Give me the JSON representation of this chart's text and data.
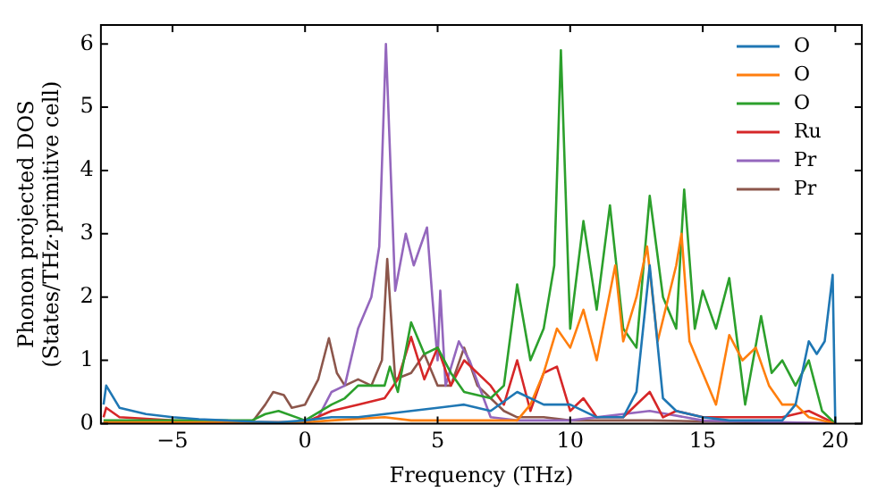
{
  "chart_data": {
    "type": "line",
    "xlabel": "Frequency (THz)",
    "ylabel": "Phonon projected DOS\n(States/THz·primitive cell)",
    "xlim": [
      -7.7,
      21
    ],
    "ylim": [
      0,
      6.3
    ],
    "xticks": [
      -5,
      0,
      5,
      10,
      15,
      20
    ],
    "yticks": [
      0,
      1,
      2,
      3,
      4,
      5,
      6
    ],
    "grid": false,
    "legend": "top right",
    "marker": "none",
    "line_style": "solid",
    "series": [
      {
        "name": "O",
        "color": "#1f77b4",
        "x": [
          -7.6,
          -7.5,
          -7,
          -6,
          -5,
          -4,
          -3,
          -2,
          -1,
          0,
          1,
          2,
          3,
          4,
          5,
          6,
          7,
          8,
          9,
          10,
          11,
          12,
          12.5,
          13,
          13.5,
          14,
          15,
          16,
          17,
          18,
          18.5,
          19,
          19.3,
          19.6,
          19.9,
          20
        ],
        "values": [
          0.3,
          0.6,
          0.25,
          0.15,
          0.1,
          0.07,
          0.05,
          0.03,
          0.02,
          0.05,
          0.1,
          0.1,
          0.15,
          0.2,
          0.25,
          0.3,
          0.2,
          0.5,
          0.3,
          0.3,
          0.1,
          0.1,
          0.5,
          2.5,
          0.4,
          0.2,
          0.1,
          0.05,
          0.05,
          0.05,
          0.3,
          1.3,
          1.1,
          1.3,
          2.35,
          0
        ]
      },
      {
        "name": "O",
        "color": "#ff7f0e",
        "x": [
          -7.6,
          0,
          1,
          3,
          4,
          6,
          8,
          8.5,
          9,
          9.5,
          10,
          10.5,
          11,
          11.7,
          12,
          12.5,
          12.9,
          13.3,
          14,
          14.2,
          14.5,
          15,
          15.5,
          16,
          16.5,
          17,
          17.5,
          18,
          18.5,
          19,
          20
        ],
        "values": [
          0.02,
          0.02,
          0.05,
          0.1,
          0.05,
          0.05,
          0.05,
          0.3,
          0.8,
          1.5,
          1.2,
          1.8,
          1.0,
          2.5,
          1.3,
          2.0,
          2.8,
          1.3,
          2.5,
          3.0,
          1.3,
          0.8,
          0.3,
          1.4,
          1.0,
          1.2,
          0.6,
          0.3,
          0.3,
          0.1,
          0
        ]
      },
      {
        "name": "O",
        "color": "#2ca02c",
        "x": [
          -7.6,
          -2,
          -1.5,
          -1,
          0,
          1,
          1.5,
          2,
          3,
          3.2,
          3.5,
          4,
          4.5,
          5,
          5.5,
          6,
          7,
          7.5,
          8,
          8.5,
          9,
          9.4,
          9.65,
          10,
          10.5,
          11,
          11.5,
          12,
          12.5,
          13,
          13.5,
          14,
          14.3,
          14.7,
          15,
          15.5,
          16,
          16.3,
          16.6,
          17.2,
          17.6,
          18,
          18.5,
          19,
          19.5,
          20
        ],
        "values": [
          0.05,
          0.05,
          0.15,
          0.2,
          0.05,
          0.3,
          0.4,
          0.6,
          0.6,
          0.9,
          0.5,
          1.6,
          1.1,
          1.2,
          0.8,
          0.5,
          0.4,
          0.6,
          2.2,
          1.0,
          1.5,
          2.5,
          5.9,
          1.5,
          3.2,
          1.8,
          3.45,
          1.5,
          1.2,
          3.6,
          2.0,
          1.5,
          3.7,
          1.5,
          2.1,
          1.5,
          2.3,
          1.3,
          0.3,
          1.7,
          0.8,
          1.0,
          0.6,
          1.0,
          0.2,
          0
        ]
      },
      {
        "name": "Ru",
        "color": "#d62728",
        "x": [
          -7.6,
          -7.5,
          -7,
          -5,
          -2,
          0,
          1,
          2,
          3,
          3.5,
          4,
          4.5,
          5,
          5.5,
          6,
          7,
          7.5,
          8,
          8.5,
          9,
          9.5,
          10,
          10.5,
          11,
          12,
          13,
          13.5,
          14,
          15,
          16,
          17,
          18,
          19,
          20
        ],
        "values": [
          0.1,
          0.25,
          0.1,
          0.05,
          0.02,
          0.02,
          0.2,
          0.3,
          0.4,
          0.7,
          1.37,
          0.7,
          1.2,
          0.6,
          1.0,
          0.6,
          0.3,
          1.0,
          0.2,
          0.8,
          0.9,
          0.2,
          0.4,
          0.1,
          0.1,
          0.5,
          0.1,
          0.2,
          0.1,
          0.1,
          0.1,
          0.1,
          0.2,
          0
        ]
      },
      {
        "name": "Pr",
        "color": "#9467bd",
        "x": [
          -7.6,
          0,
          0.5,
          1,
          1.5,
          2,
          2.5,
          2.8,
          3.05,
          3.4,
          3.8,
          4.1,
          4.6,
          4.8,
          5.0,
          5.1,
          5.3,
          5.8,
          6.2,
          7,
          8,
          10,
          13,
          15,
          20
        ],
        "values": [
          0.02,
          0.02,
          0.1,
          0.5,
          0.6,
          1.5,
          2.0,
          2.8,
          6.0,
          2.1,
          3.0,
          2.5,
          3.1,
          2.0,
          1.0,
          2.1,
          0.6,
          1.3,
          1.0,
          0.1,
          0.05,
          0.05,
          0.2,
          0.05,
          0
        ]
      },
      {
        "name": "Pr",
        "color": "#8c564b",
        "x": [
          -7.6,
          -2,
          -1.5,
          -1.2,
          -0.8,
          -0.5,
          0,
          0.5,
          0.9,
          1.2,
          1.5,
          2,
          2.5,
          2.9,
          3.1,
          3.4,
          4,
          4.5,
          5,
          5.5,
          6,
          6.5,
          7,
          7.5,
          8,
          9,
          10,
          13,
          20
        ],
        "values": [
          0.02,
          0.02,
          0.3,
          0.5,
          0.45,
          0.25,
          0.3,
          0.7,
          1.35,
          0.8,
          0.6,
          0.7,
          0.6,
          1.0,
          2.6,
          0.7,
          0.8,
          1.1,
          0.6,
          0.6,
          1.2,
          0.6,
          0.4,
          0.2,
          0.1,
          0.1,
          0.05,
          0.05,
          0
        ]
      }
    ]
  }
}
